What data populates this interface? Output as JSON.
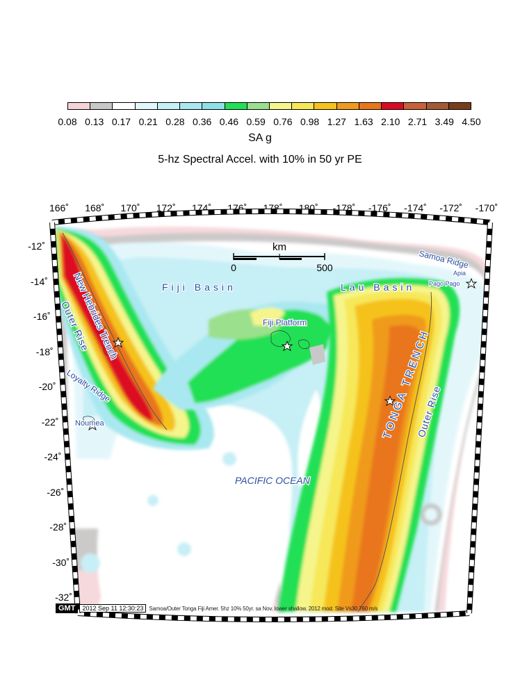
{
  "legend": {
    "colors": [
      "#f4d2d6",
      "#c8c8c8",
      "#ffffff",
      "#e3f7fb",
      "#c6eff6",
      "#a9e8f0",
      "#8ee0e8",
      "#22e055",
      "#9be08c",
      "#f5f58c",
      "#f7e85a",
      "#f5c21e",
      "#f09a1e",
      "#e9761c",
      "#dc0a22",
      "#c8603a",
      "#a45a36",
      "#7a3d1c"
    ],
    "ticks": [
      "0.08",
      "0.13",
      "0.17",
      "0.21",
      "0.28",
      "0.36",
      "0.46",
      "0.59",
      "0.76",
      "0.98",
      "1.27",
      "1.63",
      "2.10",
      "2.71",
      "3.49",
      "4.50"
    ],
    "unit": "SA g"
  },
  "map": {
    "title": "5-hz Spectral Accel. with 10% in 50 yr PE",
    "lon_labels": [
      "166˚",
      "168˚",
      "170˚",
      "172˚",
      "174˚",
      "176˚",
      "178˚",
      "180˚",
      "-178˚",
      "-176˚",
      "-174˚",
      "-172˚",
      "-170˚"
    ],
    "lat_labels": [
      "-12˚",
      "-14˚",
      "-16˚",
      "-18˚",
      "-20˚",
      "-22˚",
      "-24˚",
      "-26˚",
      "-28˚",
      "-30˚",
      "-32˚"
    ],
    "scale_bar": {
      "unit": "km",
      "start": "0",
      "end": "500"
    },
    "places": {
      "fiji_basin": "Fiji Basin",
      "lau_basin": "Lau Basin",
      "fiji_platform": "Fiji Platform",
      "samoa_ridge": "Samoa Ridge",
      "apia": "Apia",
      "pago_pago": "Pago Pago",
      "new_hebrides_trench": "New Hebrides Trench",
      "outer_rise_west": "Outer Rise",
      "loyalty_ridge": "Loyalty Ridge",
      "noumea": "Noumea",
      "tonga_trench": "TONGA TRENCH",
      "outer_rise_east": "Outer Rise",
      "pacific_ocean": "PACIFIC OCEAN"
    }
  },
  "footer": {
    "logo": "GMT",
    "timestamp": "2012 Sep 11 12:30:23",
    "caption": "Samoa/Outer Tonga Fiji Amer. 5hz 10% 50yr. sa Nov. lower shallow. 2012 mod. Site Vs30 760 m/s"
  }
}
